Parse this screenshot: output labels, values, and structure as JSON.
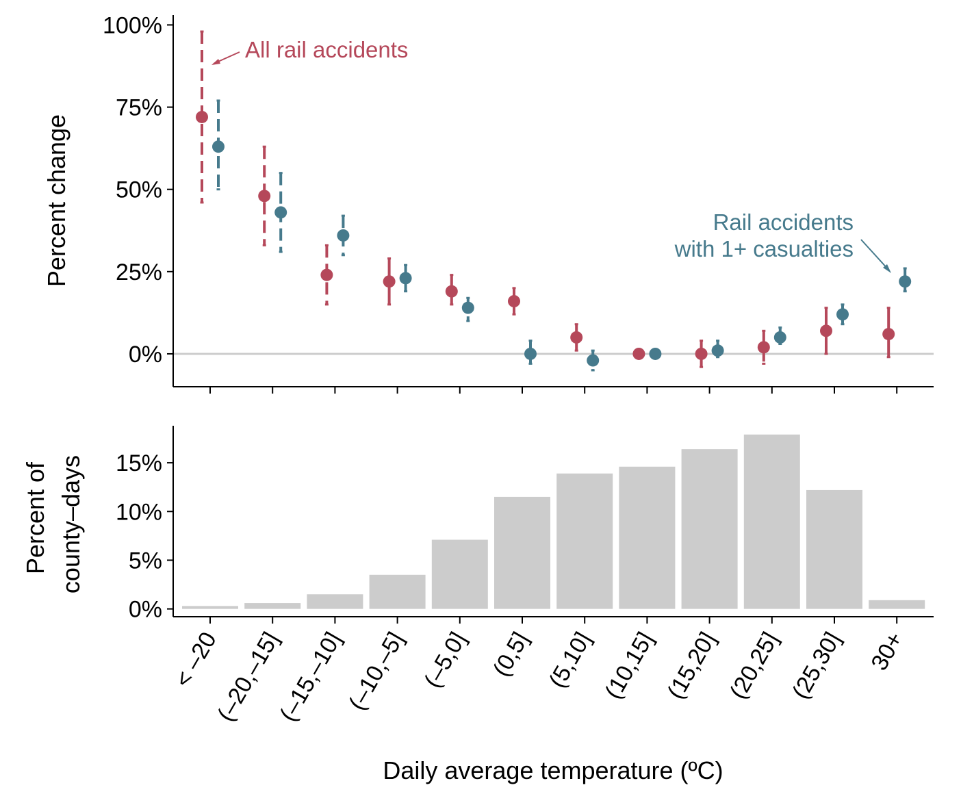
{
  "colors": {
    "all": "#b5485a",
    "casualty": "#467a8c",
    "bar": "#cccccc",
    "zero_line": "#cccccc",
    "axis": "#000000"
  },
  "chart_data": [
    {
      "type": "scatter",
      "panel": "top",
      "ylabel": "Percent change",
      "ylim": [
        -10,
        103
      ],
      "yticks": [
        0,
        25,
        50,
        75,
        100
      ],
      "ytick_labels": [
        "0%",
        "25%",
        "50%",
        "75%",
        "100%"
      ],
      "categories": [
        "< –20",
        "(–20,–15]",
        "(–15,–10]",
        "(–10,–5]",
        "(–5,0]",
        "(0,5]",
        "(5,10]",
        "(10,15]",
        "(15,20]",
        "(20,25]",
        "(25,30]",
        "30+"
      ],
      "series": [
        {
          "name": "All rail accidents",
          "label": "All rail accidents",
          "color": "#b5485a",
          "values": [
            72,
            48,
            24,
            22,
            19,
            16,
            5,
            0,
            0,
            2,
            7,
            6
          ],
          "ci_low": [
            46,
            33,
            15,
            15,
            15,
            12,
            1,
            null,
            -4,
            -3,
            0,
            -1
          ],
          "ci_high": [
            98,
            63,
            33,
            29,
            24,
            20,
            9,
            null,
            4,
            7,
            14,
            14
          ],
          "significant": [
            false,
            false,
            false,
            true,
            false,
            false,
            true,
            true,
            false,
            false,
            true,
            true
          ]
        },
        {
          "name": "Rail accidents with 1+ casualties",
          "label_line1": "Rail accidents",
          "label_line2": "with 1+ casualties",
          "color": "#467a8c",
          "values": [
            63,
            43,
            36,
            23,
            14,
            0,
            -2,
            0,
            1,
            5,
            12,
            22
          ],
          "ci_low": [
            50,
            31,
            30,
            19,
            10,
            -3,
            -5,
            null,
            -1,
            3,
            9,
            19
          ],
          "ci_high": [
            77,
            55,
            42,
            27,
            17,
            4,
            1,
            null,
            4,
            8,
            15,
            26
          ],
          "significant": [
            false,
            false,
            false,
            false,
            false,
            false,
            false,
            true,
            true,
            true,
            true,
            true
          ]
        }
      ]
    },
    {
      "type": "bar",
      "panel": "bottom",
      "ylabel_line1": "Percent of",
      "ylabel_line2": "county–days",
      "xlabel": "Daily average temperature (ºC)",
      "ylim": [
        -0.8,
        18.8
      ],
      "yticks": [
        0,
        5,
        10,
        15
      ],
      "ytick_labels": [
        "0%",
        "5%",
        "10%",
        "15%"
      ],
      "categories": [
        "< –20",
        "(–20,–15]",
        "(–15,–10]",
        "(–10,–5]",
        "(–5,0]",
        "(0,5]",
        "(5,10]",
        "(10,15]",
        "(15,20]",
        "(20,25]",
        "(25,30]",
        "30+"
      ],
      "values": [
        0.3,
        0.6,
        1.5,
        3.5,
        7.1,
        11.5,
        13.9,
        14.6,
        16.4,
        17.9,
        12.2,
        0.9
      ]
    }
  ]
}
